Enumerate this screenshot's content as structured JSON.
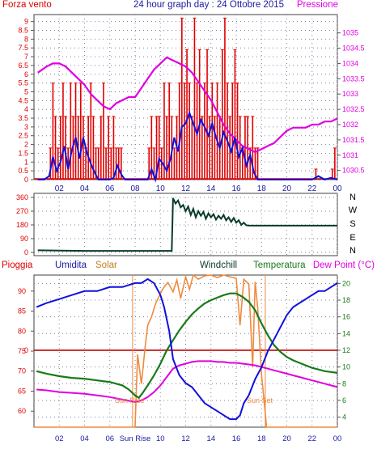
{
  "colors": {
    "wind_red": "#e00000",
    "wind_blue": "#1010e0",
    "pressure": "#e000e0",
    "direction": "#0a3a2a",
    "humidity": "#1010e0",
    "solar": "#f08a3c",
    "temperature": "#1a7a1a",
    "dewpoint": "#e000e0",
    "rain_line": "#c00000",
    "axis_red": "#e00000",
    "axis_blue": "#1a1aa0",
    "grid": "#8080a0"
  },
  "header": {
    "left": "Forza vento",
    "center": "24 hour graph day : 24 Ottobre 2015",
    "right": "Pressione"
  },
  "legend3": {
    "pioggia": "Pioggia",
    "umidita": "Umidita",
    "solar": "Solar",
    "windchill": "Windchill",
    "temperatura": "Temperatura",
    "dewpoint": "Dew Point (°C)"
  },
  "direction_labels": [
    "N",
    "W",
    "S",
    "E",
    "N"
  ],
  "sun_labels": {
    "rise": "Sun Rise",
    "set": "Sun Set"
  },
  "chart_data": [
    {
      "type": "line",
      "title": "24 hour graph day : 24 Ottobre 2015",
      "x_ticks": [
        "02",
        "04",
        "06",
        "08",
        "10",
        "12",
        "14",
        "16",
        "18",
        "20",
        "22",
        "00"
      ],
      "xlim": [
        0,
        24
      ],
      "left_axis": {
        "label": "Forza vento",
        "ylim": [
          0,
          9.4
        ],
        "ticks": [
          "0",
          "0.5",
          "1",
          "1.5",
          "2",
          "2.5",
          "3",
          "3.5",
          "4",
          "4.5",
          "5",
          "5.5",
          "6",
          "6.5",
          "7",
          "7.5",
          "8",
          "8.5",
          "9"
        ]
      },
      "right_axis": {
        "label": "Pressione",
        "ylim": [
          1030.2,
          1035.6
        ],
        "ticks": [
          "1030.5",
          "1031",
          "1031.5",
          "1032",
          "1032.5",
          "1033",
          "1033.5",
          "1034",
          "1034.5",
          "1035"
        ]
      },
      "series": [
        {
          "axis": "right",
          "style": "line",
          "x": [
            0.3,
            1.0,
            1.5,
            2.0,
            2.5,
            3.0,
            3.5,
            4.0,
            4.5,
            5.0,
            5.5,
            6.0,
            6.5,
            7.0,
            7.5,
            8.0,
            8.5,
            9.0,
            9.5,
            10.0,
            10.5,
            11.0,
            11.5,
            12.0,
            12.5,
            13.0,
            13.5,
            14.0,
            14.5,
            15.0,
            15.5,
            16.0,
            16.5,
            17.0,
            17.5,
            18.0,
            18.5,
            19.0,
            19.5,
            20.0,
            20.5,
            21.0,
            21.5,
            22.0,
            22.5,
            23.0,
            23.5,
            24.0
          ],
          "y": [
            1033.7,
            1033.9,
            1034.0,
            1034.0,
            1033.9,
            1033.7,
            1033.5,
            1033.3,
            1033.0,
            1032.8,
            1032.6,
            1032.5,
            1032.7,
            1032.8,
            1032.9,
            1032.9,
            1033.2,
            1033.5,
            1033.8,
            1034.0,
            1034.2,
            1034.1,
            1034.0,
            1033.9,
            1033.7,
            1033.4,
            1033.1,
            1032.8,
            1032.4,
            1032.0,
            1031.7,
            1031.5,
            1031.3,
            1031.2,
            1031.1,
            1031.2,
            1031.3,
            1031.4,
            1031.6,
            1031.8,
            1031.9,
            1031.9,
            1031.9,
            1032.0,
            1032.0,
            1032.1,
            1032.1,
            1032.2
          ]
        },
        {
          "axis": "left",
          "style": "line",
          "x": [
            0.3,
            0.8,
            1.2,
            1.5,
            1.8,
            2.1,
            2.4,
            2.7,
            3.0,
            3.3,
            3.6,
            3.9,
            4.2,
            4.5,
            4.8,
            5.1,
            5.4,
            5.7,
            6.0,
            6.3,
            6.6,
            6.9,
            7.2,
            7.5,
            8.0,
            8.5,
            9.0,
            9.3,
            9.6,
            9.9,
            10.2,
            10.5,
            10.8,
            11.1,
            11.4,
            11.7,
            12.0,
            12.3,
            12.6,
            12.9,
            13.2,
            13.5,
            13.8,
            14.1,
            14.4,
            14.7,
            15.0,
            15.3,
            15.6,
            15.9,
            16.2,
            16.5,
            16.8,
            17.1,
            17.4,
            17.7,
            18.0,
            18.5,
            19.0,
            20.0,
            21.0,
            22.0,
            22.5,
            23.0,
            23.5,
            24.0
          ],
          "y": [
            0,
            0,
            0.2,
            1.3,
            0.5,
            1.0,
            1.9,
            0.6,
            1.7,
            2.4,
            1.2,
            2.4,
            1.5,
            0.9,
            0.4,
            0,
            0,
            0,
            0,
            0.1,
            0.8,
            0.3,
            0,
            0,
            0,
            0,
            0,
            0.6,
            0,
            1.2,
            0.9,
            0.5,
            1.2,
            2.4,
            1.6,
            3.0,
            3.2,
            3.8,
            3.2,
            2.6,
            3.4,
            3.0,
            2.5,
            3.2,
            2.4,
            1.8,
            2.7,
            2.2,
            1.6,
            2.4,
            1.3,
            1.8,
            0.8,
            1.4,
            0.4,
            0,
            0,
            0,
            0,
            0,
            0,
            0,
            0.2,
            0,
            0.1,
            0
          ]
        },
        {
          "axis": "left",
          "style": "bars",
          "x": [
            1.3,
            1.5,
            1.7,
            1.9,
            2.1,
            2.3,
            2.5,
            2.7,
            2.9,
            3.1,
            3.3,
            3.5,
            3.7,
            3.9,
            4.1,
            4.3,
            4.5,
            4.7,
            4.9,
            5.1,
            5.3,
            5.5,
            5.7,
            5.9,
            6.1,
            6.3,
            6.5,
            6.7,
            6.9,
            9.1,
            9.3,
            9.5,
            9.7,
            9.9,
            10.1,
            10.3,
            10.5,
            10.7,
            10.9,
            11.1,
            11.3,
            11.5,
            11.7,
            11.9,
            12.1,
            12.3,
            12.5,
            12.7,
            12.9,
            13.1,
            13.3,
            13.5,
            13.7,
            13.9,
            14.1,
            14.3,
            14.5,
            14.7,
            14.9,
            15.1,
            15.3,
            15.5,
            15.7,
            15.9,
            16.1,
            16.3,
            16.5,
            16.7,
            16.9,
            17.1,
            17.3,
            17.5,
            17.7,
            22.3,
            23.6,
            23.8
          ],
          "y": [
            1.8,
            5.5,
            3.6,
            1.8,
            3.6,
            5.5,
            3.6,
            1.8,
            5.5,
            3.6,
            5.5,
            3.6,
            5.5,
            3.6,
            1.8,
            3.6,
            5.5,
            3.6,
            1.8,
            1.8,
            3.6,
            5.5,
            1.8,
            3.6,
            1.8,
            3.6,
            1.8,
            1.8,
            1.8,
            1.8,
            3.6,
            1.8,
            3.6,
            3.6,
            1.8,
            5.5,
            3.6,
            5.5,
            3.6,
            1.8,
            3.6,
            5.5,
            9.2,
            5.5,
            7.4,
            5.5,
            3.6,
            9.2,
            5.5,
            7.4,
            3.6,
            5.5,
            7.4,
            3.6,
            5.5,
            3.6,
            5.5,
            3.6,
            7.4,
            9.2,
            5.5,
            3.6,
            5.5,
            7.4,
            5.5,
            3.6,
            1.8,
            3.6,
            3.6,
            1.8,
            3.6,
            1.8,
            1.8,
            0.6,
            0.6,
            1.8
          ]
        }
      ]
    },
    {
      "type": "line",
      "title": "",
      "x_ticks": [
        "02",
        "04",
        "06",
        "08",
        "10",
        "12",
        "14",
        "16",
        "18",
        "20",
        "22",
        "00"
      ],
      "xlim": [
        0,
        24
      ],
      "ylim": [
        0,
        360
      ],
      "y_ticks": [
        "0",
        "90",
        "180",
        "270",
        "360"
      ],
      "series": [
        {
          "x": [
            0.3,
            2.0,
            4.0,
            6.0,
            8.0,
            10.0,
            10.9,
            11.0,
            11.2,
            11.4,
            11.6,
            11.8,
            12.0,
            12.2,
            12.4,
            12.6,
            12.8,
            13.0,
            13.2,
            13.4,
            13.6,
            13.8,
            14.0,
            14.2,
            14.4,
            14.6,
            14.8,
            15.0,
            15.2,
            15.4,
            15.6,
            15.8,
            16.0,
            16.2,
            16.4,
            16.6,
            16.8,
            17.0,
            17.5,
            18.0,
            20.0,
            22.0,
            24.0
          ],
          "y": [
            14,
            12,
            10,
            10,
            10,
            10,
            10,
            355,
            320,
            340,
            295,
            310,
            270,
            300,
            245,
            285,
            230,
            270,
            240,
            265,
            220,
            255,
            230,
            250,
            215,
            240,
            220,
            245,
            210,
            230,
            200,
            225,
            195,
            210,
            180,
            195,
            178,
            175,
            175,
            175,
            175,
            175,
            175
          ]
        }
      ]
    },
    {
      "type": "line",
      "title": "",
      "x_ticks": [
        "02",
        "04",
        "06",
        "Sun Rise",
        "10",
        "12",
        "14",
        "16",
        "18",
        "20",
        "22",
        "00"
      ],
      "xlim": [
        0,
        24
      ],
      "left_axis": {
        "ylim": [
          56,
          94
        ],
        "ticks": [
          "60",
          "65",
          "70",
          "75",
          "80",
          "85",
          "90"
        ]
      },
      "right_axis": {
        "ylim": [
          2.8,
          21
        ],
        "ticks": [
          "4",
          "6",
          "8",
          "10",
          "12",
          "14",
          "16",
          "18",
          "20"
        ]
      },
      "series": [
        {
          "name": "Umidita",
          "axis": "left",
          "x": [
            0.2,
            1.0,
            2.0,
            3.0,
            4.0,
            5.0,
            6.0,
            7.0,
            8.0,
            8.5,
            9.0,
            9.5,
            10.0,
            10.3,
            10.7,
            11.0,
            11.5,
            12.0,
            12.5,
            13.0,
            13.5,
            14.0,
            14.5,
            15.0,
            15.5,
            16.0,
            16.3,
            16.6,
            17.0,
            17.5,
            18.0,
            18.5,
            19.0,
            19.5,
            20.0,
            20.5,
            21.0,
            21.5,
            22.0,
            22.5,
            23.0,
            23.5,
            24.0
          ],
          "y": [
            86,
            87,
            88,
            89,
            90,
            90,
            91,
            91,
            92,
            92,
            93,
            92,
            89,
            86,
            80,
            73,
            69,
            67,
            66,
            64,
            62,
            61,
            60,
            59,
            58,
            58,
            59,
            62,
            64,
            68,
            71,
            75,
            78,
            81,
            84,
            86,
            87,
            88,
            89,
            90,
            90,
            91,
            92
          ]
        },
        {
          "name": "Temperatura",
          "axis": "right",
          "x": [
            0.2,
            1.0,
            2.0,
            3.0,
            4.0,
            5.0,
            6.0,
            7.0,
            7.5,
            8.0,
            8.3,
            8.6,
            9.0,
            9.5,
            10.0,
            10.5,
            11.0,
            11.5,
            12.0,
            12.5,
            13.0,
            13.5,
            14.0,
            14.5,
            15.0,
            15.5,
            16.0,
            16.5,
            17.0,
            17.5,
            18.0,
            18.5,
            19.0,
            19.5,
            20.0,
            20.5,
            21.0,
            21.5,
            22.0,
            22.5,
            23.0,
            23.5,
            24.0
          ],
          "y": [
            9.5,
            9.2,
            8.9,
            8.7,
            8.6,
            8.4,
            8.2,
            7.8,
            7.3,
            6.6,
            6.3,
            6.9,
            7.8,
            9.0,
            10.4,
            12.0,
            13.2,
            14.4,
            15.4,
            16.3,
            17.0,
            17.6,
            18.0,
            18.3,
            18.6,
            18.8,
            18.8,
            18.4,
            17.8,
            16.8,
            15.2,
            13.8,
            12.6,
            11.8,
            11.2,
            10.8,
            10.5,
            10.2,
            9.9,
            9.7,
            9.5,
            9.4,
            9.3
          ]
        },
        {
          "name": "Dew Point (°C)",
          "axis": "right",
          "x": [
            0.2,
            1.0,
            2.0,
            3.0,
            4.0,
            5.0,
            6.0,
            7.0,
            8.0,
            8.5,
            9.0,
            9.5,
            10.0,
            10.5,
            11.0,
            11.5,
            12.0,
            12.5,
            13.0,
            13.5,
            14.0,
            14.5,
            15.0,
            15.5,
            16.0,
            16.5,
            17.0,
            17.5,
            18.0,
            18.5,
            19.0,
            19.5,
            20.0,
            20.5,
            21.0,
            21.5,
            22.0,
            22.5,
            23.0,
            23.5,
            24.0
          ],
          "y": [
            7.3,
            7.2,
            7.0,
            6.9,
            6.8,
            6.6,
            6.4,
            6.1,
            5.8,
            6.0,
            6.4,
            7.0,
            7.8,
            8.8,
            9.8,
            10.2,
            10.4,
            10.6,
            10.7,
            10.7,
            10.7,
            10.6,
            10.6,
            10.5,
            10.5,
            10.4,
            10.3,
            10.2,
            10.0,
            9.8,
            9.6,
            9.4,
            9.2,
            9.0,
            8.8,
            8.6,
            8.4,
            8.2,
            8.0,
            7.8,
            7.6
          ]
        },
        {
          "name": "Solar",
          "axis": "right",
          "style": "noisy",
          "x": [
            0.0,
            8.0,
            8.1,
            8.2,
            8.5,
            8.8,
            9.0,
            9.3,
            9.6,
            10.0,
            10.3,
            10.6,
            11.0,
            11.3,
            11.6,
            12.0,
            12.3,
            12.6,
            13.0,
            13.5,
            14.0,
            14.5,
            15.0,
            15.5,
            16.0,
            16.3,
            16.6,
            17.0,
            17.3,
            17.5,
            17.7,
            18.0,
            18.2,
            18.4,
            24.0
          ],
          "y": [
            2.8,
            2.8,
            7.5,
            11.5,
            8.0,
            12.5,
            15.0,
            16.0,
            17.5,
            18.8,
            19.6,
            20.1,
            19.0,
            20.4,
            18.2,
            20.8,
            19.3,
            21.0,
            20.5,
            20.9,
            21.0,
            20.7,
            21.0,
            20.8,
            20.6,
            15.0,
            20.5,
            19.9,
            10.0,
            20.2,
            17.0,
            9.0,
            6.0,
            2.8,
            2.8
          ]
        }
      ]
    }
  ]
}
